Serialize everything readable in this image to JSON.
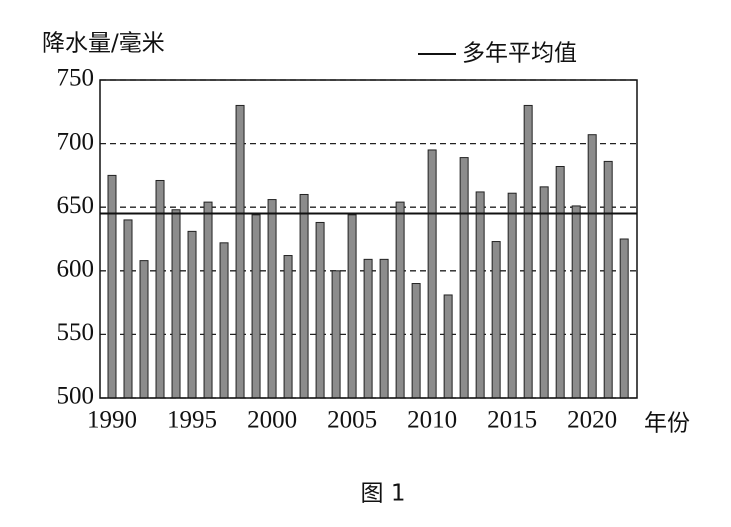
{
  "chart_data": {
    "type": "bar",
    "y_label": "降水量/毫米",
    "x_label": "年份",
    "caption": "图 1",
    "x": [
      1990,
      1991,
      1992,
      1993,
      1994,
      1995,
      1996,
      1997,
      1998,
      1999,
      2000,
      2001,
      2002,
      2003,
      2004,
      2005,
      2006,
      2007,
      2008,
      2009,
      2010,
      2011,
      2012,
      2013,
      2014,
      2015,
      2016,
      2017,
      2018,
      2019,
      2020,
      2021,
      2022
    ],
    "values": [
      675,
      640,
      608,
      671,
      648,
      631,
      654,
      622,
      730,
      644,
      656,
      612,
      660,
      638,
      600,
      644,
      609,
      609,
      654,
      590,
      695,
      581,
      689,
      662,
      623,
      661,
      730,
      666,
      682,
      651,
      707,
      686,
      625
    ],
    "color": "#8c8c8c",
    "mean": 645,
    "mean_label": "多年平均值",
    "xlim": [
      1989.25,
      2022.8
    ],
    "xticks": [
      1990,
      1995,
      2000,
      2005,
      2010,
      2015,
      2020
    ],
    "ylim": [
      500,
      750
    ],
    "yticks": [
      500,
      550,
      600,
      650,
      700,
      750
    ],
    "grid": true
  }
}
